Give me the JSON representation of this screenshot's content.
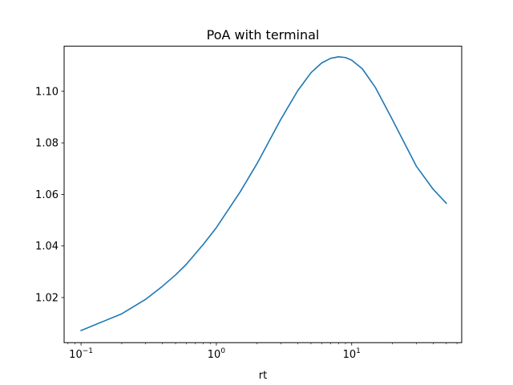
{
  "chart_data": {
    "type": "line",
    "title": "PoA with terminal",
    "xlabel": "rt",
    "ylabel": "",
    "x_scale": "log",
    "xlim": [
      0.075,
      65
    ],
    "ylim": [
      1.0025,
      1.1175
    ],
    "grid": false,
    "line_color": "#1f77b4",
    "x_ticks": [
      {
        "value": 0.1,
        "base": "10",
        "exp": "−1"
      },
      {
        "value": 1,
        "base": "10",
        "exp": "0"
      },
      {
        "value": 10,
        "base": "10",
        "exp": "1"
      }
    ],
    "y_ticks": [
      {
        "value": 1.02,
        "label": "1.02"
      },
      {
        "value": 1.04,
        "label": "1.04"
      },
      {
        "value": 1.06,
        "label": "1.06"
      },
      {
        "value": 1.08,
        "label": "1.08"
      },
      {
        "value": 1.1,
        "label": "1.10"
      }
    ],
    "series": [
      {
        "x": [
          0.1,
          0.2,
          0.3,
          0.4,
          0.5,
          0.6,
          0.8,
          1,
          1.5,
          2,
          3,
          4,
          5,
          6,
          7,
          8,
          9,
          10,
          12,
          15,
          20,
          30,
          40,
          50
        ],
        "y": [
          1.0072,
          1.0137,
          1.0193,
          1.0244,
          1.0288,
          1.0329,
          1.0406,
          1.0471,
          1.061,
          1.072,
          1.0892,
          1.1003,
          1.1072,
          1.111,
          1.1128,
          1.1134,
          1.1131,
          1.1121,
          1.1087,
          1.1014,
          1.089,
          1.071,
          1.062,
          1.0566
        ]
      }
    ]
  }
}
